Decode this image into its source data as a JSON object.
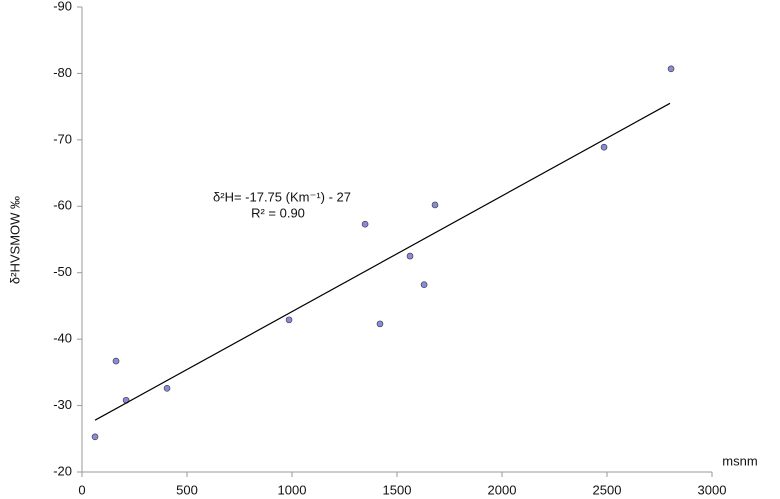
{
  "chart_data": {
    "type": "scatter",
    "x_label": "msnm",
    "y_label": "δ²HVSMOW ‰",
    "annotations": [
      "δ²H= -17.75 (Km⁻¹)  - 27",
      "R² = 0.90"
    ],
    "series": [
      {
        "color": "#8a8ad8",
        "x": [
          62,
          162,
          210,
          405,
          986,
          1348,
          1419,
          1562,
          1629,
          1681,
          2486,
          2805
        ],
        "values": [
          -25.3,
          -36.7,
          -30.8,
          -32.6,
          -42.9,
          -57.3,
          -42.3,
          -52.5,
          -48.2,
          -60.2,
          -68.9,
          -80.7
        ]
      },
      {
        "type": "line",
        "color": "#000000",
        "x": [
          62,
          2800
        ],
        "values": [
          -27.8,
          -75.5
        ]
      }
    ],
    "xlim": [
      0,
      3000
    ],
    "xticks": [
      0,
      500,
      1000,
      1500,
      2000,
      2500,
      3000
    ],
    "ylim": [
      -20,
      -90
    ],
    "yticks": [
      -20,
      -30,
      -40,
      -50,
      -60,
      -70,
      -80,
      -90
    ],
    "grid": false
  }
}
